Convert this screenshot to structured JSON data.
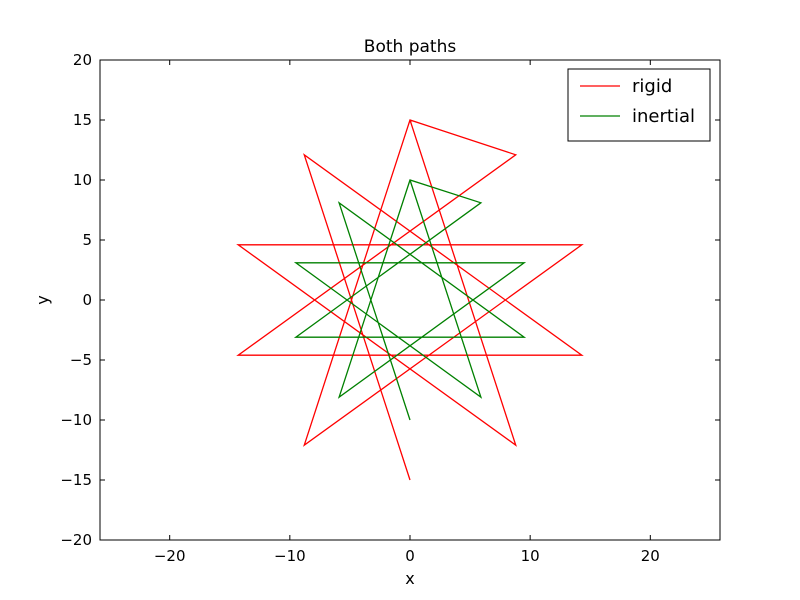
{
  "chart_data": {
    "type": "line",
    "title": "Both paths",
    "xlabel": "x",
    "ylabel": "y",
    "xlim": [
      -25.8,
      25.8
    ],
    "ylim": [
      -20,
      20
    ],
    "xticks": [
      -20,
      -10,
      0,
      10,
      20
    ],
    "yticks": [
      -20,
      -15,
      -10,
      -5,
      0,
      5,
      10,
      15,
      20
    ],
    "grid": false,
    "legend_position": "top-right",
    "series": [
      {
        "name": "rigid",
        "color": "#ff0000",
        "x": [
          0,
          8.8,
          -14.3,
          14.3,
          -8.8,
          0,
          8.8,
          -14.3,
          14.3,
          -8.8,
          0
        ],
        "y": [
          15,
          -12.1,
          4.6,
          4.6,
          -12.1,
          15,
          12.1,
          -4.6,
          -4.6,
          12.1,
          -15
        ]
      },
      {
        "name": "inertial",
        "color": "#008000",
        "x": [
          0,
          5.9,
          -9.5,
          9.5,
          -5.9,
          0,
          5.9,
          -9.5,
          9.5,
          -5.9,
          0
        ],
        "y": [
          10,
          -8.1,
          3.1,
          3.1,
          -8.1,
          10,
          8.1,
          -3.1,
          -3.1,
          8.1,
          -10
        ]
      }
    ]
  }
}
